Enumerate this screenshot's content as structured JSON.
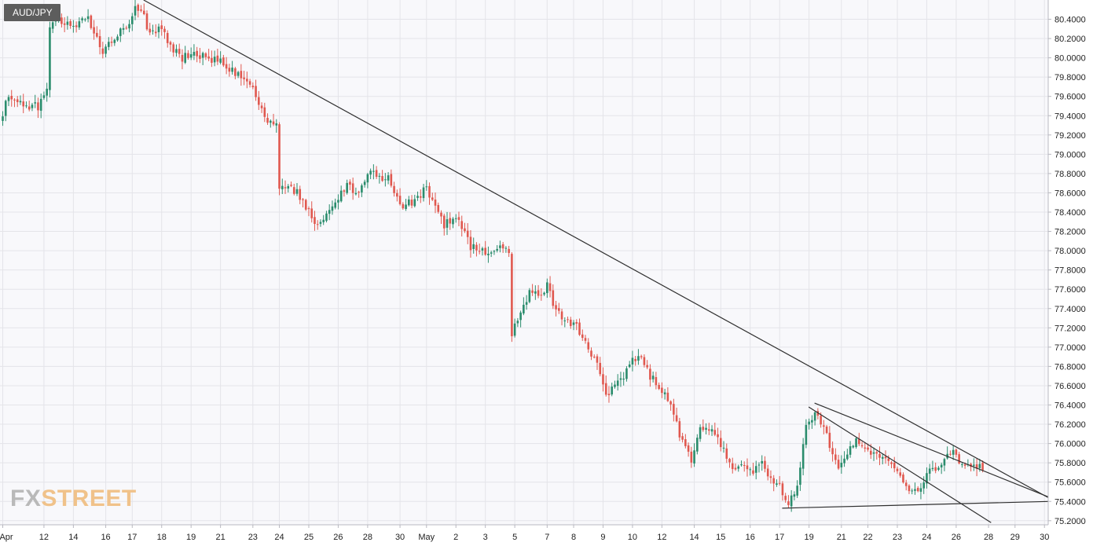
{
  "chart_data": {
    "type": "candlestick",
    "symbol": "AUD/JPY",
    "watermark": {
      "part1": "FX",
      "part2": "STREET"
    },
    "y_range": [
      75.12,
      80.53
    ],
    "y_ticks": [
      80.4,
      80.2,
      80.0,
      79.8,
      79.6,
      79.4,
      79.2,
      79.0,
      78.8,
      78.6,
      78.4,
      78.2,
      78.0,
      77.8,
      77.6,
      77.4,
      77.2,
      77.0,
      76.8,
      76.6,
      76.4,
      76.2,
      76.0,
      75.8,
      75.6,
      75.4,
      75.2
    ],
    "y_tick_labels": [
      "80.4000",
      "80.2000",
      "80.0000",
      "79.8000",
      "79.6000",
      "79.4000",
      "79.2000",
      "79.0000",
      "78.8000",
      "78.6000",
      "78.4000",
      "78.2000",
      "78.0000",
      "77.8000",
      "77.6000",
      "77.4000",
      "77.2000",
      "77.0000",
      "76.8000",
      "76.6000",
      "76.4000",
      "76.2000",
      "76.0000",
      "75.8000",
      "75.6000",
      "75.4000",
      "75.2000"
    ],
    "x_range": [
      0,
      375
    ],
    "x_ticks": [
      {
        "label": "Apr",
        "bar": 0
      },
      {
        "label": "12",
        "bar": 14
      },
      {
        "label": "14",
        "bar": 24
      },
      {
        "label": "16",
        "bar": 35
      },
      {
        "label": "17",
        "bar": 44
      },
      {
        "label": "18",
        "bar": 54
      },
      {
        "label": "19",
        "bar": 64
      },
      {
        "label": "21",
        "bar": 74
      },
      {
        "label": "23",
        "bar": 85
      },
      {
        "label": "24",
        "bar": 94
      },
      {
        "label": "25",
        "bar": 104
      },
      {
        "label": "26",
        "bar": 114
      },
      {
        "label": "28",
        "bar": 124
      },
      {
        "label": "30",
        "bar": 135
      },
      {
        "label": "May",
        "bar": 144
      },
      {
        "label": "2",
        "bar": 154
      },
      {
        "label": "3",
        "bar": 164
      },
      {
        "label": "5",
        "bar": 174
      },
      {
        "label": "7",
        "bar": 185
      },
      {
        "label": "8",
        "bar": 194
      },
      {
        "label": "9",
        "bar": 204
      },
      {
        "label": "10",
        "bar": 214
      },
      {
        "label": "12",
        "bar": 224
      },
      {
        "label": "14",
        "bar": 235
      },
      {
        "label": "15",
        "bar": 244
      },
      {
        "label": "16",
        "bar": 254
      },
      {
        "label": "17",
        "bar": 264
      },
      {
        "label": "19",
        "bar": 274
      },
      {
        "label": "21",
        "bar": 285
      },
      {
        "label": "22",
        "bar": 294
      },
      {
        "label": "23",
        "bar": 304
      },
      {
        "label": "24",
        "bar": 314
      },
      {
        "label": "26",
        "bar": 324
      },
      {
        "label": "28",
        "bar": 335
      },
      {
        "label": "29",
        "bar": 344
      },
      {
        "label": "30",
        "bar": 354
      }
    ],
    "anchors": [
      [
        0,
        79.35
      ],
      [
        3,
        79.6
      ],
      [
        8,
        79.5
      ],
      [
        13,
        79.5
      ],
      [
        16,
        79.7
      ],
      [
        17,
        80.3
      ],
      [
        20,
        80.4
      ],
      [
        25,
        80.35
      ],
      [
        30,
        80.4
      ],
      [
        35,
        80.05
      ],
      [
        40,
        80.25
      ],
      [
        43,
        80.3
      ],
      [
        46,
        80.55
      ],
      [
        48,
        80.5
      ],
      [
        51,
        80.25
      ],
      [
        55,
        80.3
      ],
      [
        58,
        80.1
      ],
      [
        62,
        80.0
      ],
      [
        66,
        80.05
      ],
      [
        70,
        80.0
      ],
      [
        75,
        79.95
      ],
      [
        80,
        79.85
      ],
      [
        85,
        79.75
      ],
      [
        88,
        79.55
      ],
      [
        91,
        79.35
      ],
      [
        94,
        79.3
      ],
      [
        95,
        78.6
      ],
      [
        98,
        78.7
      ],
      [
        101,
        78.6
      ],
      [
        104,
        78.45
      ],
      [
        107,
        78.3
      ],
      [
        110,
        78.3
      ],
      [
        114,
        78.5
      ],
      [
        118,
        78.7
      ],
      [
        121,
        78.6
      ],
      [
        126,
        78.8
      ],
      [
        132,
        78.75
      ],
      [
        136,
        78.45
      ],
      [
        140,
        78.5
      ],
      [
        145,
        78.65
      ],
      [
        148,
        78.45
      ],
      [
        151,
        78.25
      ],
      [
        154,
        78.35
      ],
      [
        157,
        78.25
      ],
      [
        160,
        78.05
      ],
      [
        165,
        78.0
      ],
      [
        170,
        78.05
      ],
      [
        173,
        78.0
      ],
      [
        174,
        77.15
      ],
      [
        176,
        77.3
      ],
      [
        178,
        77.45
      ],
      [
        181,
        77.6
      ],
      [
        184,
        77.5
      ],
      [
        186,
        77.7
      ],
      [
        188,
        77.4
      ],
      [
        192,
        77.3
      ],
      [
        196,
        77.2
      ],
      [
        200,
        77.0
      ],
      [
        203,
        76.8
      ],
      [
        206,
        76.5
      ],
      [
        209,
        76.6
      ],
      [
        212,
        76.7
      ],
      [
        215,
        76.85
      ],
      [
        218,
        76.9
      ],
      [
        221,
        76.7
      ],
      [
        224,
        76.6
      ],
      [
        228,
        76.4
      ],
      [
        231,
        76.1
      ],
      [
        233,
        75.95
      ],
      [
        235,
        75.8
      ],
      [
        238,
        76.2
      ],
      [
        241,
        76.15
      ],
      [
        244,
        76.05
      ],
      [
        247,
        75.85
      ],
      [
        250,
        75.7
      ],
      [
        253,
        75.8
      ],
      [
        256,
        75.7
      ],
      [
        259,
        75.85
      ],
      [
        262,
        75.6
      ],
      [
        265,
        75.55
      ],
      [
        268,
        75.4
      ],
      [
        271,
        75.55
      ],
      [
        274,
        76.15
      ],
      [
        277,
        76.3
      ],
      [
        280,
        76.2
      ],
      [
        282,
        76.0
      ],
      [
        285,
        75.75
      ],
      [
        288,
        75.9
      ],
      [
        291,
        76.05
      ],
      [
        294,
        75.95
      ],
      [
        297,
        75.9
      ],
      [
        300,
        75.85
      ],
      [
        304,
        75.75
      ],
      [
        307,
        75.6
      ],
      [
        310,
        75.5
      ],
      [
        313,
        75.55
      ],
      [
        315,
        75.7
      ],
      [
        318,
        75.75
      ],
      [
        321,
        75.85
      ],
      [
        324,
        75.9
      ],
      [
        327,
        75.8
      ],
      [
        330,
        75.78
      ],
      [
        333,
        75.76
      ]
    ],
    "trendlines": [
      {
        "name": "main-downtrend",
        "from": {
          "bar": 45,
          "price": 80.65
        },
        "to": {
          "bar": 356,
          "price": 75.43
        }
      },
      {
        "name": "wedge-upper",
        "from": {
          "bar": 276,
          "price": 76.42
        },
        "to": {
          "bar": 356,
          "price": 75.44
        }
      },
      {
        "name": "wedge-lower",
        "from": {
          "bar": 265,
          "price": 75.33
        },
        "to": {
          "bar": 356,
          "price": 75.4
        }
      },
      {
        "name": "channel-lower",
        "from": {
          "bar": 274,
          "price": 76.38
        },
        "to": {
          "bar": 336,
          "price": 75.18
        }
      }
    ],
    "colors": {
      "up": "#2a8c6c",
      "down": "#e0584f",
      "wick_up": "#2a8c6c",
      "wick_down": "#e0584f",
      "grid": "#e4e4e9",
      "plot_bg": "#f8f8fb",
      "trendline": "#2f2f2f",
      "axis": "#b8b8c0"
    }
  }
}
